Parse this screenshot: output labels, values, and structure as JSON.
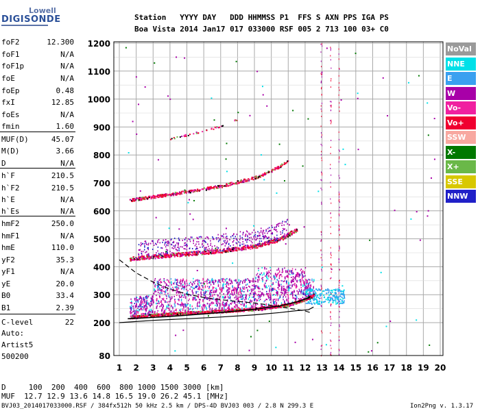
{
  "logo": {
    "brand": "Lowell",
    "product": "DIGISONDE"
  },
  "header": {
    "row1": "Station   YYYY DAY   DDD HHMMSS P1  FFS S AXN PPS IGA PS",
    "row2": "Boa Vista 2014 Jan17 017 033000 RSF 005 2 713 100 03+ C0"
  },
  "params": [
    {
      "name": "foF2",
      "value": "12.300"
    },
    {
      "name": "foF1",
      "value": "N/A"
    },
    {
      "name": "foF1p",
      "value": "N/A"
    },
    {
      "name": "foE",
      "value": "N/A"
    },
    {
      "name": "foEp",
      "value": "0.48"
    },
    {
      "name": "fxI",
      "value": "12.85"
    },
    {
      "name": "foEs",
      "value": "N/A"
    },
    {
      "name": "fmin",
      "value": "1.60"
    },
    {
      "name": "MUF(D)",
      "value": "45.07"
    },
    {
      "name": "M(D)",
      "value": "3.66"
    },
    {
      "name": "D",
      "value": "N/A"
    },
    {
      "name": "h`F",
      "value": "210.5"
    },
    {
      "name": "h`F2",
      "value": "210.5"
    },
    {
      "name": "h`E",
      "value": "N/A"
    },
    {
      "name": "h`Es",
      "value": "N/A"
    },
    {
      "name": "hmF2",
      "value": "250.0"
    },
    {
      "name": "hmF1",
      "value": "N/A"
    },
    {
      "name": "hmE",
      "value": "110.0"
    },
    {
      "name": "yF2",
      "value": "35.3"
    },
    {
      "name": "yF1",
      "value": "N/A"
    },
    {
      "name": "yE",
      "value": "20.0"
    },
    {
      "name": "B0",
      "value": "33.4"
    },
    {
      "name": "B1",
      "value": "2.39"
    },
    {
      "name": "C-level",
      "value": "22"
    }
  ],
  "notes": {
    "auto": "Auto:",
    "artist": "Artist5",
    "code": "500200"
  },
  "muf_table": {
    "d_row": "D     100  200  400  600  800 1000 1500 3000 [km]",
    "muf_row": "MUF  12.7 12.9 13.6 14.8 16.5 19.0 26.2 45.1 [MHz]"
  },
  "footer": {
    "left": "BVJ03_2014017033000.RSF / 384fx512h 50 kHz 2.5 km / DPS-4D BVJ03 003 / 2.8 N 299.3 E",
    "right": "Ion2Png v. 1.3.17"
  },
  "legend": [
    {
      "label": "NoVal",
      "color": "#9a9a9a"
    },
    {
      "label": "NNE",
      "color": "#00e0e8"
    },
    {
      "label": "E",
      "color": "#3aa0f0"
    },
    {
      "label": "W",
      "color": "#a800a8"
    },
    {
      "label": "Vo-",
      "color": "#f020a0"
    },
    {
      "label": "Vo+",
      "color": "#f00030"
    },
    {
      "label": "SSW",
      "color": "#f8a8a0"
    },
    {
      "label": "X-",
      "color": "#007800"
    },
    {
      "label": "X+",
      "color": "#6ab848"
    },
    {
      "label": "SSE",
      "color": "#d8c800"
    },
    {
      "label": "NNW",
      "color": "#2020c8"
    }
  ],
  "chart_data": {
    "type": "scatter",
    "title": "",
    "xlabel": "",
    "ylabel": "",
    "xlim": [
      1,
      20
    ],
    "ylim": [
      80,
      1200
    ],
    "x_ticks": [
      1,
      2,
      3,
      4,
      5,
      6,
      7,
      8,
      9,
      10,
      11,
      12,
      13,
      14,
      15,
      16,
      17,
      18,
      19,
      20
    ],
    "y_ticks": [
      80,
      200,
      300,
      400,
      500,
      600,
      700,
      800,
      900,
      1000,
      1100,
      1200
    ],
    "grid": true,
    "traces": [
      {
        "name": "1-hop F trace",
        "points": [
          [
            1.6,
            220
          ],
          [
            3,
            228
          ],
          [
            5,
            236
          ],
          [
            7,
            242
          ],
          [
            9,
            250
          ],
          [
            11,
            265
          ],
          [
            12,
            285
          ],
          [
            12.5,
            300
          ]
        ]
      },
      {
        "name": "2-hop F trace",
        "points": [
          [
            1.6,
            430
          ],
          [
            3,
            438
          ],
          [
            5,
            448
          ],
          [
            7,
            458
          ],
          [
            9,
            475
          ],
          [
            10.5,
            500
          ],
          [
            11.5,
            535
          ]
        ]
      },
      {
        "name": "3-hop F trace",
        "points": [
          [
            1.6,
            640
          ],
          [
            3,
            652
          ],
          [
            5,
            670
          ],
          [
            7,
            690
          ],
          [
            9,
            720
          ],
          [
            10,
            745
          ],
          [
            11,
            780
          ]
        ]
      },
      {
        "name": "4-hop F trace",
        "points": [
          [
            4,
            860
          ],
          [
            5.5,
            880
          ],
          [
            7,
            905
          ],
          [
            8,
            930
          ]
        ]
      }
    ],
    "spread_region": {
      "x": [
        1.6,
        12.5
      ],
      "y_low": 230,
      "y_high": 360
    },
    "profile_dashed": [
      [
        1,
        425
      ],
      [
        2,
        378
      ],
      [
        3,
        345
      ],
      [
        4,
        320
      ],
      [
        5,
        302
      ],
      [
        6,
        290
      ],
      [
        7,
        282
      ],
      [
        8,
        276
      ],
      [
        9,
        270
      ],
      [
        10,
        262
      ],
      [
        11,
        252
      ],
      [
        12,
        242
      ],
      [
        12.3,
        236
      ]
    ],
    "profile_solid_lower": [
      [
        1,
        200
      ],
      [
        3,
        208
      ],
      [
        5,
        214
      ],
      [
        7,
        220
      ],
      [
        9,
        228
      ],
      [
        10.5,
        236
      ],
      [
        11.5,
        243
      ],
      [
        12.2,
        246
      ],
      [
        12.5,
        256
      ]
    ],
    "profile_solid_upper": [
      [
        1.5,
        214
      ],
      [
        4,
        222
      ],
      [
        7,
        236
      ],
      [
        9,
        248
      ],
      [
        10.5,
        260
      ],
      [
        11.5,
        274
      ],
      [
        12.3,
        290
      ]
    ]
  }
}
